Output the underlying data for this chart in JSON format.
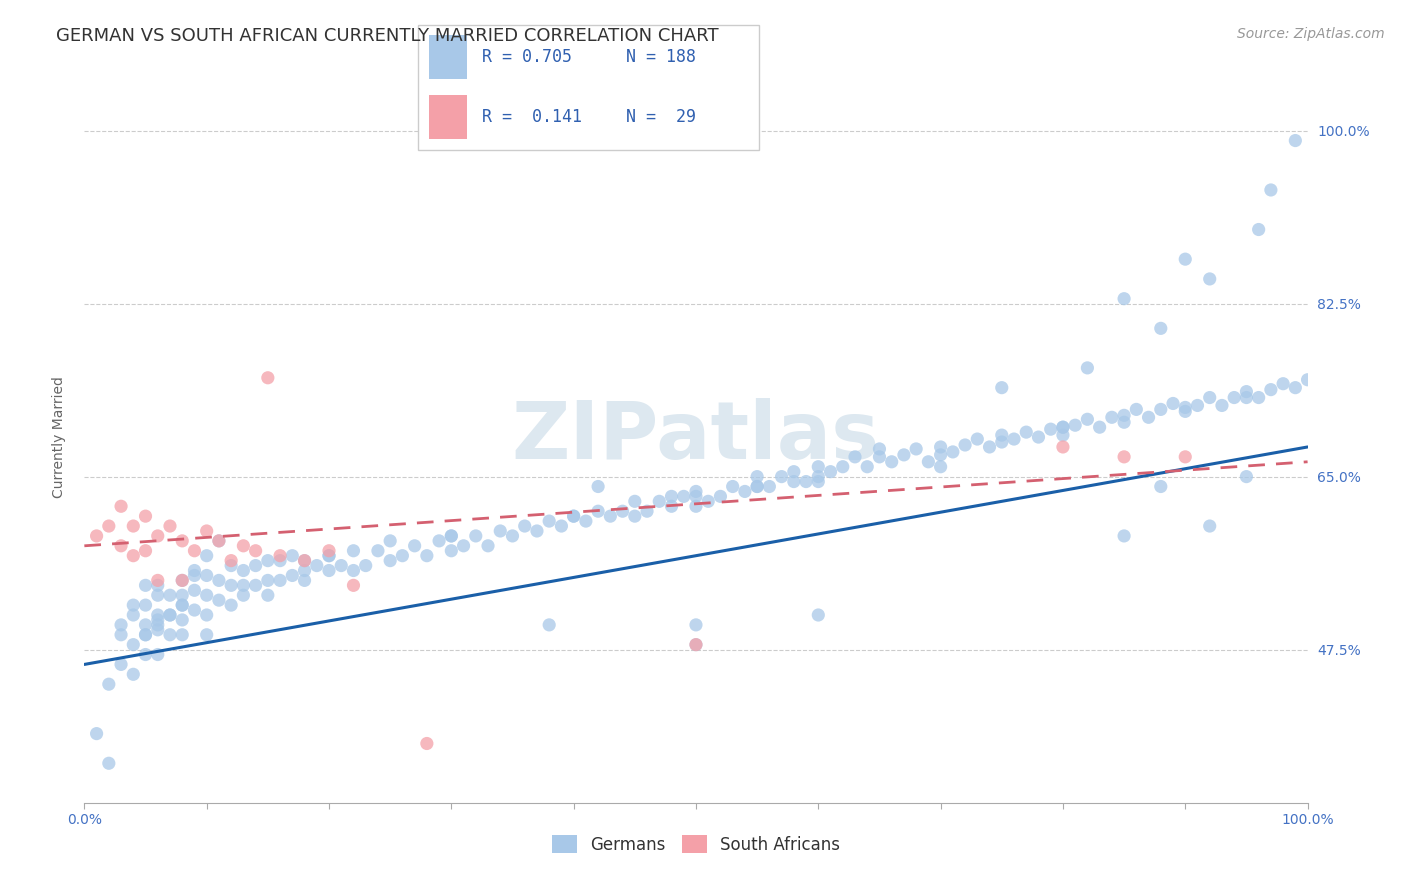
{
  "title": "GERMAN VS SOUTH AFRICAN CURRENTLY MARRIED CORRELATION CHART",
  "source": "Source: ZipAtlas.com",
  "ylabel": "Currently Married",
  "watermark": "ZIPatlas",
  "xlim": [
    0.0,
    1.0
  ],
  "ylim": [
    0.32,
    1.06
  ],
  "x_tick_positions": [
    0.0,
    0.1,
    0.2,
    0.3,
    0.4,
    0.5,
    0.6,
    0.7,
    0.8,
    0.9,
    1.0
  ],
  "x_tick_labels": [
    "0.0%",
    "",
    "",
    "",
    "",
    "",
    "",
    "",
    "",
    "",
    "100.0%"
  ],
  "y_ticks": [
    0.475,
    0.65,
    0.825,
    1.0
  ],
  "y_tick_labels": [
    "47.5%",
    "65.0%",
    "82.5%",
    "100.0%"
  ],
  "blue_R": "0.705",
  "blue_N": "188",
  "pink_R": "0.141",
  "pink_N": "29",
  "blue_color": "#a8c8e8",
  "pink_color": "#f4a0a8",
  "blue_line_color": "#1a5fa8",
  "pink_line_color": "#d46070",
  "legend_blue_label": "Germans",
  "legend_pink_label": "South Africans",
  "legend_text_color": "#3060b0",
  "legend_rn_color": "#3060b0",
  "blue_scatter_x": [
    0.01,
    0.02,
    0.02,
    0.03,
    0.03,
    0.03,
    0.04,
    0.04,
    0.04,
    0.04,
    0.05,
    0.05,
    0.05,
    0.05,
    0.05,
    0.06,
    0.06,
    0.06,
    0.06,
    0.06,
    0.06,
    0.07,
    0.07,
    0.07,
    0.08,
    0.08,
    0.08,
    0.08,
    0.09,
    0.09,
    0.09,
    0.1,
    0.1,
    0.1,
    0.1,
    0.11,
    0.11,
    0.12,
    0.12,
    0.12,
    0.13,
    0.13,
    0.14,
    0.14,
    0.15,
    0.15,
    0.15,
    0.16,
    0.16,
    0.17,
    0.17,
    0.18,
    0.18,
    0.19,
    0.2,
    0.2,
    0.21,
    0.22,
    0.22,
    0.23,
    0.24,
    0.25,
    0.25,
    0.26,
    0.27,
    0.28,
    0.29,
    0.3,
    0.3,
    0.31,
    0.32,
    0.33,
    0.34,
    0.35,
    0.36,
    0.37,
    0.38,
    0.39,
    0.4,
    0.41,
    0.42,
    0.43,
    0.44,
    0.45,
    0.45,
    0.46,
    0.47,
    0.48,
    0.49,
    0.5,
    0.5,
    0.51,
    0.52,
    0.53,
    0.54,
    0.55,
    0.55,
    0.56,
    0.57,
    0.58,
    0.58,
    0.59,
    0.6,
    0.6,
    0.61,
    0.62,
    0.63,
    0.64,
    0.65,
    0.65,
    0.66,
    0.67,
    0.68,
    0.69,
    0.7,
    0.7,
    0.71,
    0.72,
    0.73,
    0.74,
    0.75,
    0.75,
    0.76,
    0.77,
    0.78,
    0.79,
    0.8,
    0.8,
    0.81,
    0.82,
    0.83,
    0.84,
    0.85,
    0.85,
    0.86,
    0.87,
    0.88,
    0.89,
    0.9,
    0.91,
    0.92,
    0.93,
    0.94,
    0.95,
    0.96,
    0.97,
    0.98,
    0.99,
    1.0,
    0.07,
    0.08,
    0.09,
    0.1,
    0.11,
    0.2,
    0.3,
    0.4,
    0.5,
    0.6,
    0.7,
    0.8,
    0.9,
    0.95,
    0.05,
    0.06,
    0.08,
    0.13,
    0.18,
    0.82,
    0.88,
    0.92,
    0.96,
    0.97,
    0.99,
    0.5,
    0.6,
    0.5,
    0.48,
    0.55,
    0.75,
    0.85,
    0.9,
    0.38,
    0.42,
    0.85,
    0.88,
    0.92,
    0.95
  ],
  "blue_scatter_y": [
    0.39,
    0.36,
    0.44,
    0.49,
    0.46,
    0.5,
    0.48,
    0.51,
    0.45,
    0.52,
    0.49,
    0.52,
    0.47,
    0.5,
    0.54,
    0.495,
    0.51,
    0.53,
    0.47,
    0.5,
    0.54,
    0.51,
    0.49,
    0.53,
    0.505,
    0.52,
    0.545,
    0.49,
    0.515,
    0.535,
    0.555,
    0.51,
    0.53,
    0.55,
    0.49,
    0.525,
    0.545,
    0.52,
    0.54,
    0.56,
    0.53,
    0.555,
    0.54,
    0.56,
    0.53,
    0.545,
    0.565,
    0.545,
    0.565,
    0.55,
    0.57,
    0.545,
    0.565,
    0.56,
    0.555,
    0.57,
    0.56,
    0.555,
    0.575,
    0.56,
    0.575,
    0.565,
    0.585,
    0.57,
    0.58,
    0.57,
    0.585,
    0.575,
    0.59,
    0.58,
    0.59,
    0.58,
    0.595,
    0.59,
    0.6,
    0.595,
    0.605,
    0.6,
    0.61,
    0.605,
    0.615,
    0.61,
    0.615,
    0.61,
    0.625,
    0.615,
    0.625,
    0.62,
    0.63,
    0.62,
    0.635,
    0.625,
    0.63,
    0.64,
    0.635,
    0.64,
    0.65,
    0.64,
    0.65,
    0.645,
    0.655,
    0.645,
    0.65,
    0.66,
    0.655,
    0.66,
    0.67,
    0.66,
    0.67,
    0.678,
    0.665,
    0.672,
    0.678,
    0.665,
    0.672,
    0.68,
    0.675,
    0.682,
    0.688,
    0.68,
    0.685,
    0.692,
    0.688,
    0.695,
    0.69,
    0.698,
    0.7,
    0.692,
    0.702,
    0.708,
    0.7,
    0.71,
    0.705,
    0.712,
    0.718,
    0.71,
    0.718,
    0.724,
    0.716,
    0.722,
    0.73,
    0.722,
    0.73,
    0.736,
    0.73,
    0.738,
    0.744,
    0.74,
    0.748,
    0.51,
    0.53,
    0.55,
    0.57,
    0.585,
    0.57,
    0.59,
    0.61,
    0.63,
    0.645,
    0.66,
    0.7,
    0.72,
    0.73,
    0.49,
    0.505,
    0.52,
    0.54,
    0.555,
    0.76,
    0.8,
    0.85,
    0.9,
    0.94,
    0.99,
    0.5,
    0.51,
    0.48,
    0.63,
    0.64,
    0.74,
    0.83,
    0.87,
    0.5,
    0.64,
    0.59,
    0.64,
    0.6,
    0.65
  ],
  "pink_scatter_x": [
    0.01,
    0.02,
    0.03,
    0.03,
    0.04,
    0.04,
    0.05,
    0.05,
    0.06,
    0.07,
    0.08,
    0.09,
    0.1,
    0.11,
    0.12,
    0.13,
    0.14,
    0.16,
    0.18,
    0.2,
    0.28,
    0.5,
    0.8,
    0.85,
    0.9,
    0.15,
    0.08,
    0.06,
    0.22
  ],
  "pink_scatter_y": [
    0.59,
    0.6,
    0.58,
    0.62,
    0.57,
    0.6,
    0.575,
    0.61,
    0.59,
    0.6,
    0.585,
    0.575,
    0.595,
    0.585,
    0.565,
    0.58,
    0.575,
    0.57,
    0.565,
    0.575,
    0.38,
    0.48,
    0.68,
    0.67,
    0.67,
    0.75,
    0.545,
    0.545,
    0.54
  ],
  "blue_trend_y0": 0.46,
  "blue_trend_y1": 0.68,
  "pink_trend_y0": 0.58,
  "pink_trend_y1": 0.665,
  "grid_color": "#cccccc",
  "background_color": "#ffffff",
  "title_color": "#333333",
  "axis_label_color": "#666666",
  "tick_label_color": "#4472c4",
  "watermark_color": "#dde8f0",
  "title_fontsize": 13,
  "source_fontsize": 10,
  "axis_label_fontsize": 10,
  "tick_fontsize": 10,
  "legend_fontsize": 12
}
